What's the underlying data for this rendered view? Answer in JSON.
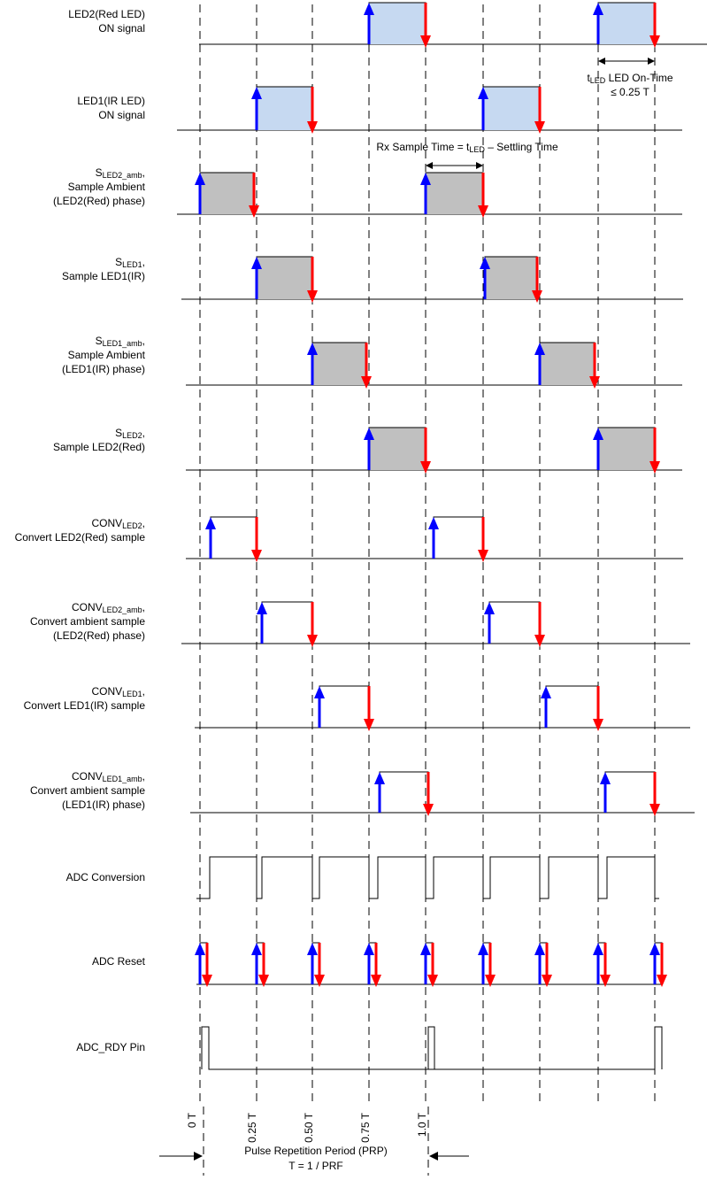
{
  "rows": [
    {
      "label": {
        "lines": [
          "LED2(Red LED)",
          "ON signal"
        ]
      }
    },
    {
      "label": {
        "lines": [
          "LED1(IR LED)",
          "ON signal"
        ]
      }
    },
    {
      "label": {
        "prefix": "S",
        "subscript": "LED2_amb",
        "suffix": ",",
        "lines": [
          "Sample Ambient",
          "(LED2(Red) phase)"
        ]
      }
    },
    {
      "label": {
        "prefix": "S",
        "subscript": "LED1",
        "suffix": ",",
        "lines": [
          "Sample LED1(IR)"
        ]
      }
    },
    {
      "label": {
        "prefix": "S",
        "subscript": "LED1_amb",
        "suffix": ",",
        "lines": [
          "Sample Ambient",
          "(LED1(IR) phase)"
        ]
      }
    },
    {
      "label": {
        "prefix": "S",
        "subscript": "LED2",
        "suffix": ",",
        "lines": [
          "Sample LED2(Red)"
        ]
      }
    },
    {
      "label": {
        "prefix": "CONV",
        "subscript": "LED2",
        "suffix": ",",
        "lines": [
          "Convert LED2(Red) sample"
        ]
      }
    },
    {
      "label": {
        "prefix": "CONV",
        "subscript": "LED2_amb",
        "suffix": ",",
        "lines": [
          "Convert ambient sample",
          "(LED2(Red) phase)"
        ]
      }
    },
    {
      "label": {
        "prefix": "CONV",
        "subscript": "LED1",
        "suffix": ",",
        "lines": [
          "Convert LED1(IR) sample"
        ]
      }
    },
    {
      "label": {
        "prefix": "CONV",
        "subscript": "LED1_amb",
        "suffix": ",",
        "lines": [
          "Convert ambient sample",
          "(LED1(IR) phase)"
        ]
      }
    },
    {
      "label": {
        "lines": [
          "ADC Conversion"
        ]
      }
    },
    {
      "label": {
        "lines": [
          "ADC Reset"
        ]
      }
    },
    {
      "label": {
        "lines": [
          "ADC_RDY Pin"
        ]
      }
    }
  ],
  "time_ticks": [
    "0 T",
    "0.25 T",
    "0.50 T",
    "0.75 T",
    "1.0 T"
  ],
  "annotations": {
    "led_on_time": {
      "prefix": "t",
      "subscript": "LED",
      "suffix": " LED On-Time",
      "line2": "≤ 0.25 T"
    },
    "rx_sample_time": {
      "prefix": "Rx Sample Time = t",
      "subscript": "LED",
      "suffix": " – Settling Time"
    },
    "prp": {
      "line1": "Pulse Repetition Period (PRP)",
      "line2": "T = 1 / PRF"
    }
  }
}
